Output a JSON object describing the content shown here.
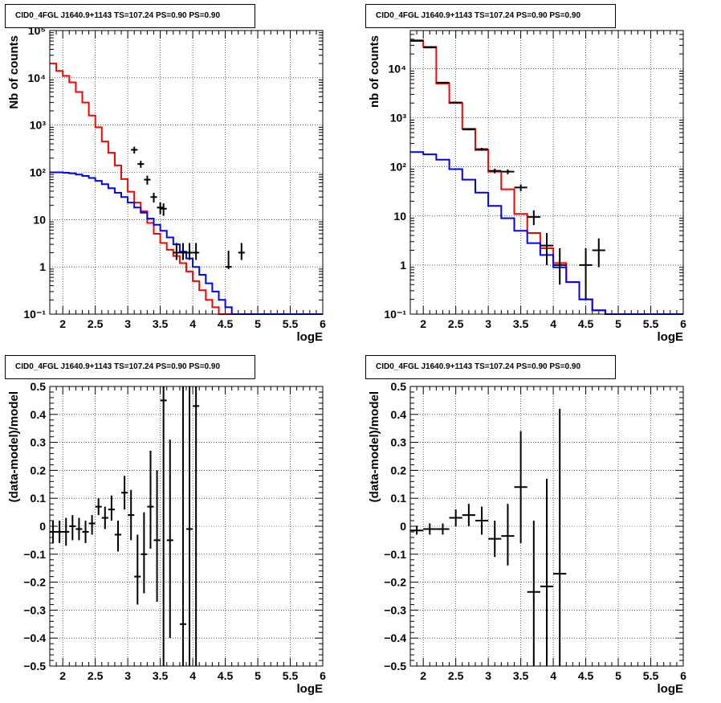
{
  "page": {
    "background": "#ffffff"
  },
  "colors": {
    "data": "#000000",
    "total_model": "#ff0000",
    "background_model": "#0000ff"
  },
  "chart_data": [
    {
      "id": "top-left",
      "type": "line",
      "title": "CID0_4FGL J1640.9+1143 TS=107.24 PS=0.90 PS=0.90",
      "xlabel": "logE",
      "ylabel": "Nb of counts",
      "xlim": [
        1.8,
        6.0
      ],
      "ylim": [
        0.1,
        100000
      ],
      "yscale": "log",
      "grid": true,
      "xticks": [
        2,
        2.5,
        3,
        3.5,
        4,
        4.5,
        5,
        5.5,
        6
      ],
      "xtick_labels": [
        "2",
        "2.5",
        "3",
        "3.5",
        "4",
        "4.5",
        "5",
        "5.5",
        "6"
      ],
      "yticks": [
        0.1,
        1,
        10,
        100,
        1000,
        10000,
        100000
      ],
      "ytick_labels": [
        "10⁻¹",
        "1",
        "10",
        "10²",
        "10³",
        "10⁴",
        "10⁵"
      ],
      "series": [
        {
          "role": "total",
          "style": "step",
          "color": "#ff0000",
          "bin_edges": [
            1.8,
            1.9,
            2.0,
            2.1,
            2.2,
            2.3,
            2.4,
            2.5,
            2.6,
            2.7,
            2.8,
            2.9,
            3.0,
            3.1,
            3.2,
            3.3,
            3.4,
            3.5,
            3.6,
            3.7,
            3.8,
            3.9,
            4.0,
            4.1,
            4.2,
            4.3,
            4.4,
            4.5,
            4.6,
            4.7,
            4.8,
            4.9,
            5.0,
            5.1,
            5.2,
            5.3,
            5.4,
            5.5,
            5.6,
            5.7,
            5.8,
            5.9,
            6.0
          ],
          "values": [
            20000,
            14000,
            11000,
            8000,
            5000,
            3000,
            1600,
            900,
            450,
            260,
            140,
            72,
            39,
            23,
            15,
            8.5,
            5.0,
            3.2,
            2.3,
            1.7,
            1.2,
            0.8,
            0.5,
            0.32,
            0.2,
            0.14,
            0.1,
            0.1,
            0.1,
            0.1,
            0.1,
            0.1,
            0.1,
            0.1,
            0.1,
            0.1,
            0.1,
            0.1,
            0.1,
            0.1,
            0.1,
            0.1
          ]
        },
        {
          "role": "background",
          "style": "step",
          "color": "#0000ff",
          "bin_edges": [
            1.8,
            1.9,
            2.0,
            2.1,
            2.2,
            2.3,
            2.4,
            2.5,
            2.6,
            2.7,
            2.8,
            2.9,
            3.0,
            3.1,
            3.2,
            3.3,
            3.4,
            3.5,
            3.6,
            3.7,
            3.8,
            3.9,
            4.0,
            4.1,
            4.2,
            4.3,
            4.4,
            4.5,
            4.6,
            4.7,
            4.8,
            4.9,
            5.0,
            5.1,
            5.2,
            5.3,
            5.4,
            5.5,
            5.6,
            5.7,
            5.8,
            5.9,
            6.0
          ],
          "values": [
            100,
            100,
            98,
            95,
            90,
            84,
            76,
            66,
            56,
            46,
            37,
            30,
            23,
            18,
            14,
            10.5,
            7.8,
            5.8,
            4.2,
            3.0,
            2.1,
            1.5,
            1.0,
            0.68,
            0.45,
            0.3,
            0.2,
            0.14,
            0.1,
            0.1,
            0.1,
            0.1,
            0.1,
            0.1,
            0.1,
            0.1,
            0.1,
            0.1,
            0.1,
            0.1,
            0.1,
            0.1
          ]
        },
        {
          "role": "data",
          "style": "points",
          "color": "#000000",
          "x": [
            3.1,
            3.2,
            3.3,
            3.4,
            3.5,
            3.55,
            3.75,
            3.85,
            3.95,
            4.05,
            4.55,
            4.75
          ],
          "y": [
            300,
            150,
            70,
            30,
            18,
            17,
            2.0,
            2.0,
            2.0,
            2.0,
            1.0,
            2.0
          ],
          "yerr_low": [
            250,
            125,
            55,
            23,
            13,
            12,
            1.4,
            1.4,
            1.4,
            1.4,
            0.9,
            1.4
          ],
          "yerr_high": [
            350,
            175,
            85,
            37,
            23,
            22,
            3.2,
            3.2,
            3.2,
            3.2,
            2.2,
            3.2
          ],
          "xerr": 0.05
        }
      ]
    },
    {
      "id": "top-right",
      "type": "line",
      "title": "CID0_4FGL J1640.9+1143 TS=107.24 PS=0.90 PS=0.90",
      "xlabel": "logE",
      "ylabel": "nb of counts",
      "xlim": [
        1.8,
        6.0
      ],
      "ylim": [
        0.1,
        60000
      ],
      "yscale": "log",
      "grid": true,
      "xticks": [
        2,
        2.5,
        3,
        3.5,
        4,
        4.5,
        5,
        5.5,
        6
      ],
      "xtick_labels": [
        "2",
        "2.5",
        "3",
        "3.5",
        "4",
        "4.5",
        "5",
        "5.5",
        "6"
      ],
      "yticks": [
        0.1,
        1,
        10,
        100,
        1000,
        10000
      ],
      "ytick_labels": [
        "10⁻¹",
        "1",
        "10",
        "10²",
        "10³",
        "10⁴"
      ],
      "series": [
        {
          "role": "total",
          "style": "step",
          "color": "#ff0000",
          "bin_edges": [
            1.8,
            2.0,
            2.2,
            2.4,
            2.6,
            2.8,
            3.0,
            3.2,
            3.4,
            3.6,
            3.8,
            4.0,
            4.2,
            4.4,
            4.6,
            4.8,
            5.0,
            5.2,
            5.4,
            5.6,
            5.8,
            6.0
          ],
          "values": [
            38000,
            28000,
            5000,
            2000,
            600,
            220,
            80,
            35,
            11,
            4.5,
            2.2,
            1.1,
            0.45,
            0.2,
            0.12,
            0.1,
            0.1,
            0.1,
            0.1,
            0.1,
            0.1
          ]
        },
        {
          "role": "background",
          "style": "step",
          "color": "#0000ff",
          "bin_edges": [
            1.8,
            2.0,
            2.2,
            2.4,
            2.6,
            2.8,
            3.0,
            3.2,
            3.4,
            3.6,
            3.8,
            4.0,
            4.2,
            4.4,
            4.6,
            4.8,
            5.0,
            5.2,
            5.4,
            5.6,
            5.8,
            6.0
          ],
          "values": [
            200,
            180,
            140,
            90,
            55,
            30,
            16,
            9,
            5,
            2.8,
            1.6,
            0.9,
            0.45,
            0.2,
            0.12,
            0.1,
            0.1,
            0.1,
            0.1,
            0.1,
            0.1
          ]
        },
        {
          "role": "data",
          "style": "points",
          "color": "#000000",
          "x": [
            1.9,
            2.1,
            2.3,
            2.5,
            2.7,
            2.9,
            3.1,
            3.3,
            3.5,
            3.7,
            3.9,
            4.1,
            4.5,
            4.7
          ],
          "y": [
            37000,
            27000,
            5200,
            2050,
            580,
            230,
            83,
            80,
            38,
            9.5,
            2.5,
            1.0,
            1.0,
            2.0
          ],
          "yerr_low": [
            36700,
            26700,
            5050,
            1960,
            555,
            215,
            74,
            71,
            32,
            6.5,
            1.0,
            0.4,
            0.2,
            0.9
          ],
          "yerr_high": [
            37300,
            27300,
            5350,
            2140,
            605,
            245,
            92,
            89,
            44,
            13,
            4.5,
            2.2,
            2.2,
            3.5
          ],
          "xerr": 0.1
        }
      ]
    },
    {
      "id": "bottom-left",
      "type": "scatter",
      "title": "CID0_4FGL J1640.9+1143 TS=107.24 PS=0.90 PS=0.90",
      "xlabel": "logE",
      "ylabel": "(data-model)/model",
      "xlim": [
        1.8,
        6.0
      ],
      "ylim": [
        -0.5,
        0.5
      ],
      "grid": true,
      "xticks": [
        2,
        2.5,
        3,
        3.5,
        4,
        4.5,
        5,
        5.5,
        6
      ],
      "xtick_labels": [
        "2",
        "2.5",
        "3",
        "3.5",
        "4",
        "4.5",
        "5",
        "5.5",
        "6"
      ],
      "yticks": [
        -0.5,
        -0.4,
        -0.3,
        -0.2,
        -0.1,
        0,
        0.1,
        0.2,
        0.3,
        0.4,
        0.5
      ],
      "ytick_labels": [
        "−0.5",
        "−0.4",
        "−0.3",
        "−0.2",
        "−0.1",
        "0",
        "0.1",
        "0.2",
        "0.3",
        "0.4",
        "0.5"
      ],
      "series": [
        {
          "role": "data",
          "style": "points",
          "color": "#000000",
          "x": [
            1.85,
            1.95,
            2.05,
            2.15,
            2.25,
            2.35,
            2.45,
            2.55,
            2.65,
            2.75,
            2.85,
            2.95,
            3.05,
            3.15,
            3.25,
            3.35,
            3.45,
            3.55,
            3.65,
            3.85,
            3.95,
            4.05
          ],
          "y": [
            -0.02,
            -0.02,
            -0.02,
            0.0,
            -0.01,
            -0.02,
            0.01,
            0.07,
            0.03,
            0.06,
            -0.03,
            0.12,
            0.04,
            -0.18,
            -0.1,
            0.07,
            -0.05,
            0.45,
            -0.05,
            -0.35,
            -0.01,
            0.43
          ],
          "yerr_low": [
            -0.06,
            -0.06,
            -0.07,
            -0.05,
            -0.05,
            -0.06,
            -0.03,
            0.04,
            -0.01,
            0.02,
            -0.09,
            0.06,
            -0.05,
            -0.28,
            -0.24,
            -0.08,
            -0.27,
            -0.5,
            -0.4,
            -0.5,
            -0.5,
            -0.5
          ],
          "yerr_high": [
            0.02,
            0.02,
            0.03,
            0.04,
            0.03,
            0.02,
            0.04,
            0.1,
            0.07,
            0.11,
            0.02,
            0.18,
            0.13,
            -0.03,
            0.05,
            0.27,
            0.2,
            0.5,
            0.31,
            0.5,
            0.5,
            0.5
          ],
          "xerr": 0.05
        }
      ]
    },
    {
      "id": "bottom-right",
      "type": "scatter",
      "title": "CID0_4FGL J1640.9+1143 TS=107.24 PS=0.90 PS=0.90",
      "xlabel": "logE",
      "ylabel": "(data-model)/model",
      "xlim": [
        1.8,
        6.0
      ],
      "ylim": [
        -0.5,
        0.5
      ],
      "grid": true,
      "xticks": [
        2,
        2.5,
        3,
        3.5,
        4,
        4.5,
        5,
        5.5,
        6
      ],
      "xtick_labels": [
        "2",
        "2.5",
        "3",
        "3.5",
        "4",
        "4.5",
        "5",
        "5.5",
        "6"
      ],
      "yticks": [
        -0.5,
        -0.4,
        -0.3,
        -0.2,
        -0.1,
        0,
        0.1,
        0.2,
        0.3,
        0.4,
        0.5
      ],
      "ytick_labels": [
        "−0.5",
        "−0.4",
        "−0.3",
        "−0.2",
        "−0.1",
        "0",
        "0.1",
        "0.2",
        "0.3",
        "0.4",
        "0.5"
      ],
      "series": [
        {
          "role": "data",
          "style": "points",
          "color": "#000000",
          "x": [
            1.9,
            2.1,
            2.3,
            2.5,
            2.7,
            2.9,
            3.1,
            3.3,
            3.5,
            3.7,
            3.9,
            4.1
          ],
          "y": [
            -0.015,
            -0.01,
            -0.01,
            0.03,
            0.04,
            0.02,
            -0.045,
            -0.035,
            0.14,
            -0.235,
            -0.215,
            -0.17
          ],
          "yerr_low": [
            -0.03,
            -0.03,
            -0.03,
            0.0,
            0.0,
            -0.03,
            -0.11,
            -0.14,
            -0.06,
            -0.5,
            -0.5,
            -0.5
          ],
          "yerr_high": [
            0.0,
            0.01,
            0.01,
            0.06,
            0.08,
            0.07,
            0.02,
            0.08,
            0.34,
            0.02,
            0.17,
            0.42
          ],
          "xerr": 0.1
        }
      ]
    }
  ]
}
